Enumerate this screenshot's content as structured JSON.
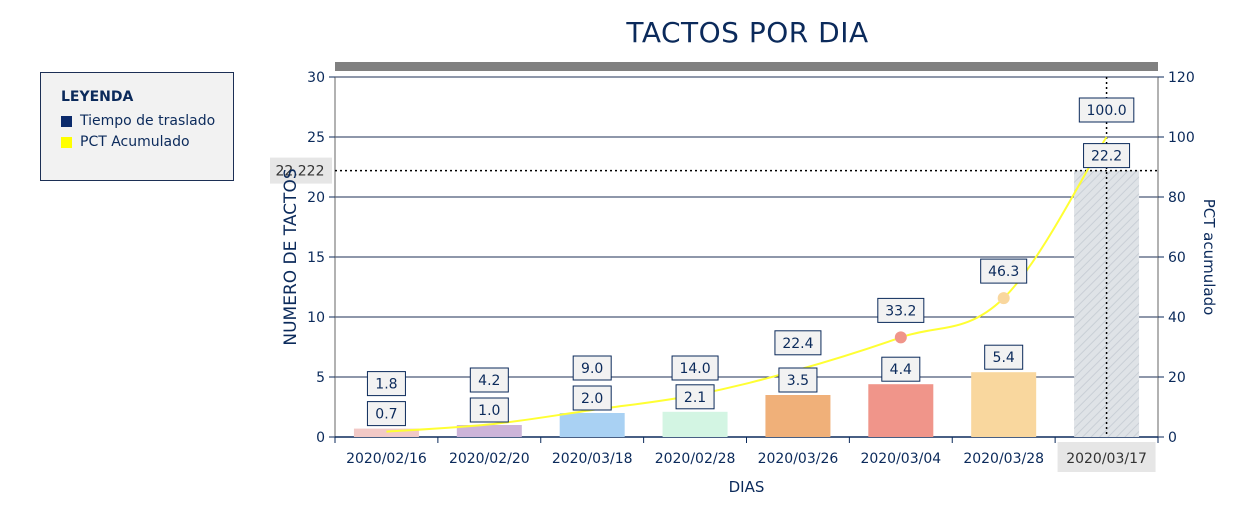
{
  "title": "TACTOS POR DIA",
  "legend": {
    "title": "LEYENDA",
    "items": [
      {
        "label": "Tiempo de traslado",
        "color": "#0b2a6b"
      },
      {
        "label": "PCT Acumulado",
        "color": "#ffff00"
      }
    ]
  },
  "chart_data": {
    "type": "bar",
    "title": "TACTOS POR DIA",
    "xlabel": "DIAS",
    "ylabel": "NUMERO DE TACTOS",
    "y2label": "PCT acumulado",
    "ylim": [
      0,
      30
    ],
    "y2lim": [
      0,
      120
    ],
    "yticks": [
      0,
      5,
      10,
      15,
      20,
      25,
      30
    ],
    "y2ticks": [
      0,
      20,
      40,
      60,
      80,
      100,
      120
    ],
    "categories": [
      "2020/02/16",
      "2020/02/20",
      "2020/03/18",
      "2020/02/28",
      "2020/03/26",
      "2020/03/04",
      "2020/03/28",
      "2020/03/17"
    ],
    "series": [
      {
        "name": "Tiempo de traslado",
        "type": "bar",
        "axis": "left",
        "values": [
          0.7,
          1.0,
          2.0,
          2.1,
          3.5,
          4.4,
          5.4,
          22.2
        ],
        "value_labels": [
          "0.7",
          "1.0",
          "2.0",
          "2.1",
          "3.5",
          "4.4",
          "5.4",
          "22.2"
        ]
      },
      {
        "name": "PCT Acumulado",
        "type": "line",
        "axis": "right",
        "values": [
          1.8,
          4.2,
          9.0,
          14.0,
          22.4,
          33.2,
          46.3,
          100.0
        ],
        "value_labels": [
          "1.8",
          "4.2",
          "9.0",
          "14.0",
          "22.4",
          "33.2",
          "46.3",
          "100.0"
        ]
      }
    ],
    "bar_colors": [
      "#f2c9c6",
      "#cdb4d9",
      "#a9d1f3",
      "#d3f5e3",
      "#f0b079",
      "#f0958a",
      "#f9d79e",
      "#dfe3e7"
    ],
    "highlight": {
      "category": "2020/03/17",
      "value_label": "22.222"
    },
    "grid": true
  }
}
